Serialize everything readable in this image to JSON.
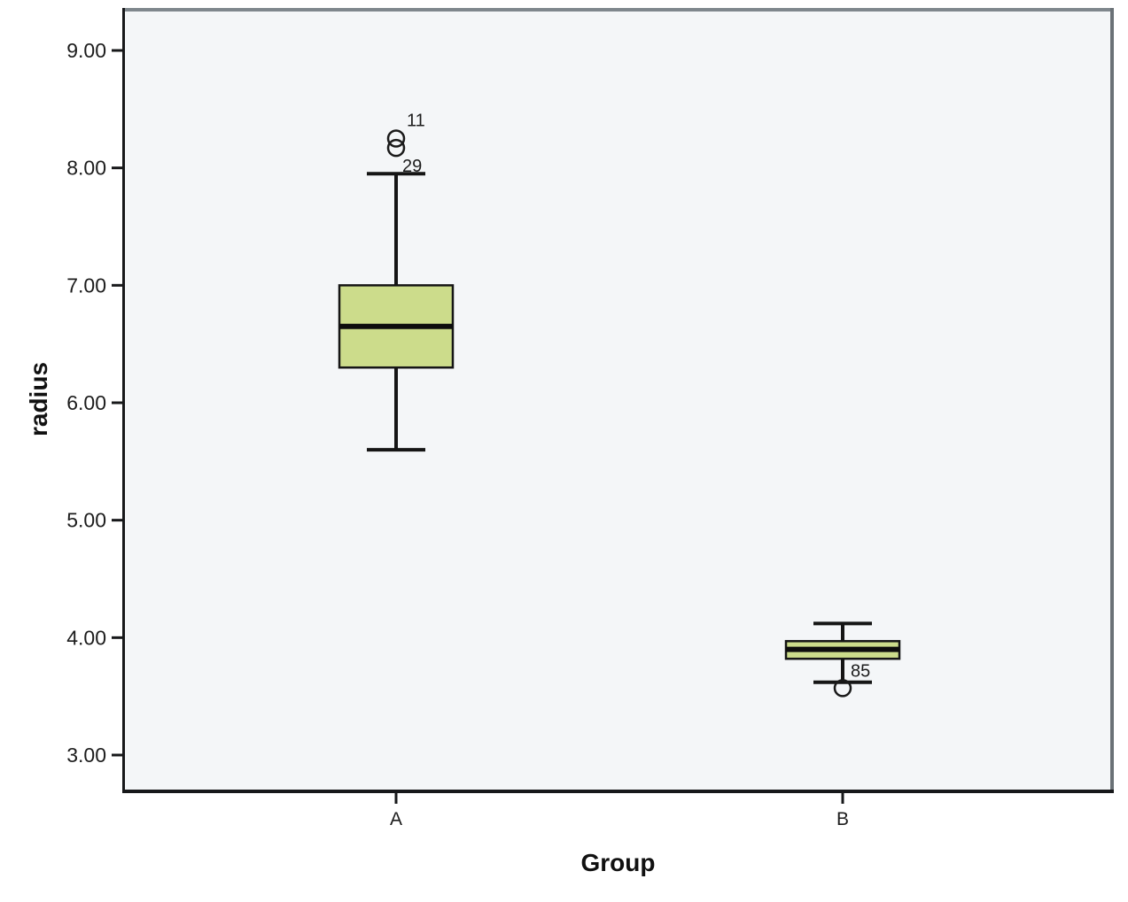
{
  "figure": {
    "y_axis_title": "radius",
    "x_axis_title": "Group"
  },
  "chart_data": {
    "type": "boxplot",
    "title": "",
    "xlabel": "Group",
    "ylabel": "radius",
    "categories": [
      "A",
      "B"
    ],
    "y_ticks": [
      {
        "value": 9,
        "label": "9.00"
      },
      {
        "value": 8,
        "label": "8.00"
      },
      {
        "value": 7,
        "label": "7.00"
      },
      {
        "value": 6,
        "label": "6.00"
      },
      {
        "value": 5,
        "label": "5.00"
      },
      {
        "value": 4,
        "label": "4.00"
      },
      {
        "value": 3,
        "label": "3.00"
      }
    ],
    "ylim": [
      2.69,
      9.36
    ],
    "grid": false,
    "legend": false,
    "series": [
      {
        "category": "A",
        "whisker_low": 5.6,
        "q1": 6.3,
        "median": 6.65,
        "q3": 7.0,
        "whisker_high": 7.95,
        "outliers": [
          {
            "value": 8.25,
            "label": "11",
            "label_dx": 12,
            "label_dy": -14
          },
          {
            "value": 8.17,
            "label": "29",
            "label_dx": 7,
            "label_dy": 27
          }
        ]
      },
      {
        "category": "B",
        "whisker_low": 3.62,
        "q1": 3.82,
        "median": 3.9,
        "q3": 3.97,
        "whisker_high": 4.12,
        "outliers": [
          {
            "value": 3.57,
            "label": "85",
            "label_dx": 9,
            "label_dy": -13
          }
        ]
      }
    ],
    "colors": {
      "box_fill": "#ccdc8b",
      "box_stroke": "#151515",
      "median": "#0d0d0d",
      "whisker": "#151515",
      "outlier_stroke": "#1a1a1a",
      "plot_bg": "#f4f6f8",
      "frame_top": "#7f878d",
      "frame_right": "#6a7176",
      "frame_dark": "#17181a",
      "tick_text": "#1c1c1c"
    }
  }
}
